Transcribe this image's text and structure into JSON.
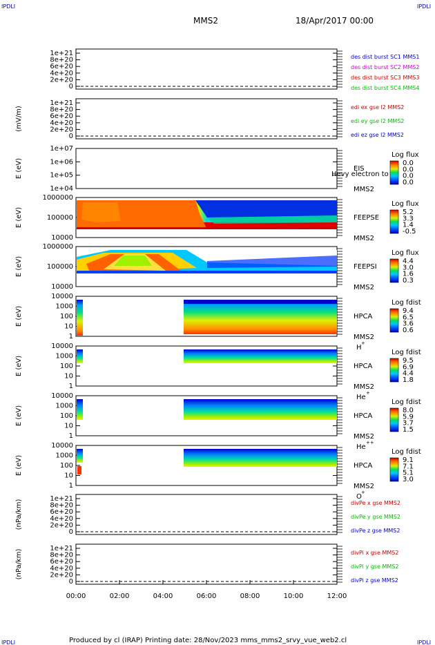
{
  "corner_tag": "IPDLI",
  "header": {
    "mission": "MMS2",
    "date": "18/Apr/2017 00:00"
  },
  "footer": {
    "text": "Produced by cl (IRAP)   Printing date: 28/Nov/2023   mms_mms2_srvy_vue_web2.cl"
  },
  "chart_data": [
    {
      "type": "line",
      "ylabel": "",
      "y_ticks": [
        "0",
        "2e+20",
        "4e+20",
        "6e+20",
        "8e+20",
        "1e+21"
      ],
      "series": [
        {
          "name": "des dist burst SC1 MMS1",
          "color": "#0000cc"
        },
        {
          "name": "des dist burst SC2 MMS2",
          "color": "#cc00cc"
        },
        {
          "name": "des dist burst SC3 MMS3",
          "color": "#cc0000"
        },
        {
          "name": "des dist burst SC4 MMS4",
          "color": "#00bb00"
        }
      ],
      "values": []
    },
    {
      "type": "line",
      "ylabel": "(mV/m)",
      "y_ticks": [
        "0",
        "2e+20",
        "4e+20",
        "6e+20",
        "8e+20",
        "1e+21"
      ],
      "series": [
        {
          "name": "edi ex gse l2 MMS2",
          "color": "#cc0000"
        },
        {
          "name": "edi ey gse l2 MMS2",
          "color": "#00bb00"
        },
        {
          "name": "edi ez gse l2 MMS2",
          "color": "#0000cc"
        }
      ],
      "values": []
    },
    {
      "type": "heatmap",
      "ylabel": "E (eV)",
      "y_ticks": [
        "1e+04",
        "1e+05",
        "1e+06",
        "1e+07"
      ],
      "labels": [
        "EIS",
        "MMS2"
      ],
      "overlay": "Hevy electron to",
      "colorbar": {
        "title": "Log flux",
        "ticks": [
          "0.0",
          "0.0",
          "0.0",
          "0.0"
        ]
      }
    },
    {
      "type": "heatmap",
      "ylabel": "E (eV)",
      "y_ticks": [
        "10000",
        "100000",
        "1000000"
      ],
      "labels": [
        "FEEPSE",
        "MMS2"
      ],
      "colorbar": {
        "title": "Log flux",
        "ticks": [
          "5.2",
          "3.3",
          "1.4",
          "-0.5"
        ]
      }
    },
    {
      "type": "heatmap",
      "ylabel": "E (eV)",
      "y_ticks": [
        "10000",
        "100000",
        "1000000"
      ],
      "labels": [
        "FEEPSI",
        "MMS2"
      ],
      "colorbar": {
        "title": "Log flux",
        "ticks": [
          "4.4",
          "3.0",
          "1.6",
          "0.3"
        ]
      }
    },
    {
      "type": "heatmap",
      "ylabel": "E (eV)",
      "y_ticks": [
        "1",
        "10",
        "100",
        "1000",
        "10000"
      ],
      "labels": [
        "HPCA",
        "MMS2"
      ],
      "species": "H",
      "charge": "+",
      "colorbar": {
        "title": "Log fdist",
        "ticks": [
          "9.4",
          "6.5",
          "3.6",
          "0.6"
        ]
      }
    },
    {
      "type": "heatmap",
      "ylabel": "E (eV)",
      "y_ticks": [
        "1",
        "10",
        "100",
        "1000",
        "10000"
      ],
      "labels": [
        "HPCA",
        "MMS2"
      ],
      "species": "He",
      "charge": "+",
      "colorbar": {
        "title": "Log fdist",
        "ticks": [
          "9.5",
          "6.9",
          "4.4",
          "1.8"
        ]
      }
    },
    {
      "type": "heatmap",
      "ylabel": "E (eV)",
      "y_ticks": [
        "1",
        "10",
        "100",
        "1000",
        "10000"
      ],
      "labels": [
        "HPCA",
        "MMS2"
      ],
      "species": "He",
      "charge": "++",
      "colorbar": {
        "title": "Log fdist",
        "ticks": [
          "8.0",
          "5.9",
          "3.7",
          "1.5"
        ]
      }
    },
    {
      "type": "heatmap",
      "ylabel": "E (eV)",
      "y_ticks": [
        "1",
        "10",
        "100",
        "1000",
        "10000"
      ],
      "labels": [
        "HPCA",
        "MMS2"
      ],
      "species": "O",
      "charge": "+",
      "colorbar": {
        "title": "Log fdist",
        "ticks": [
          "9.1",
          "7.1",
          "5.1",
          "3.0"
        ]
      }
    },
    {
      "type": "line",
      "ylabel": "(nPa/km)",
      "y_ticks": [
        "0",
        "2e+20",
        "4e+20",
        "6e+20",
        "8e+20",
        "1e+21"
      ],
      "series": [
        {
          "name": "divPe x gse MMS2",
          "color": "#cc0000"
        },
        {
          "name": "divPe y gse MMS2",
          "color": "#00bb00"
        },
        {
          "name": "divPe z gse MMS2",
          "color": "#0000cc"
        }
      ],
      "values": []
    },
    {
      "type": "line",
      "ylabel": "(nPa/km)",
      "y_ticks": [
        "0",
        "2e+20",
        "4e+20",
        "6e+20",
        "8e+20",
        "1e+21"
      ],
      "series": [
        {
          "name": "divPi x gse MMS2",
          "color": "#cc0000"
        },
        {
          "name": "divPi y gse MMS2",
          "color": "#00bb00"
        },
        {
          "name": "divPi z gse MMS2",
          "color": "#0000cc"
        }
      ],
      "values": []
    }
  ],
  "x_ticks": [
    "00:00",
    "02:00",
    "04:00",
    "06:00",
    "08:00",
    "10:00",
    "12:00"
  ]
}
